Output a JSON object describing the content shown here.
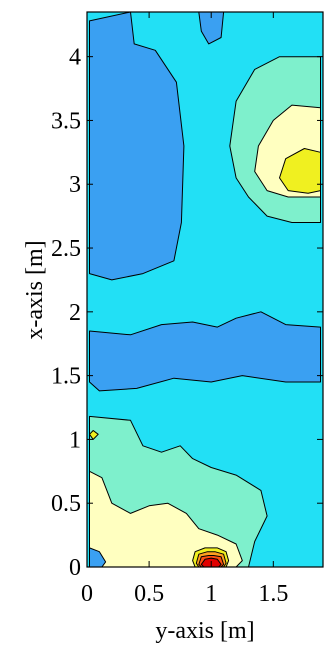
{
  "chart_data": {
    "type": "contour",
    "title": "",
    "xlabel": "y-axis [m]",
    "ylabel": "x-axis [m]",
    "xlim": [
      0,
      1.9
    ],
    "ylim": [
      0,
      4.35
    ],
    "x_ticks": [
      0,
      0.5,
      1,
      1.5
    ],
    "x_tick_labels": [
      "0",
      "0.5",
      "1",
      "1.5"
    ],
    "y_ticks": [
      0,
      0.5,
      1,
      1.5,
      2,
      2.5,
      3,
      3.5,
      4
    ],
    "y_tick_labels": [
      "0",
      "0.5",
      "1",
      "1.5",
      "2",
      "2.5",
      "3",
      "3.5",
      "4"
    ],
    "grid": false,
    "legend": "none",
    "colormap": "jet",
    "levels": [
      {
        "level": 1,
        "color": "#0a7de8"
      },
      {
        "level": 2,
        "color": "#3aa0f2"
      },
      {
        "level": 3,
        "color": "#22e0f5"
      },
      {
        "level": 4,
        "color": "#7ef0cc"
      },
      {
        "level": 5,
        "color": "#ffffc0"
      },
      {
        "level": 6,
        "color": "#f0f020"
      },
      {
        "level": 7,
        "color": "#ffa020"
      },
      {
        "level": 8,
        "color": "#ff5010"
      },
      {
        "level": 9,
        "color": "#e00000"
      }
    ],
    "regions": [
      {
        "name": "background",
        "level": 3,
        "points": [
          [
            0,
            0
          ],
          [
            1.9,
            0
          ],
          [
            1.9,
            4.35
          ],
          [
            0,
            4.35
          ]
        ]
      },
      {
        "name": "upper-left-low",
        "level": 2,
        "points": [
          [
            0.02,
            4.28
          ],
          [
            0.35,
            4.35
          ],
          [
            0.38,
            4.1
          ],
          [
            0.55,
            4.05
          ],
          [
            0.72,
            3.8
          ],
          [
            0.78,
            3.3
          ],
          [
            0.76,
            2.7
          ],
          [
            0.7,
            2.4
          ],
          [
            0.45,
            2.3
          ],
          [
            0.2,
            2.25
          ],
          [
            0.02,
            2.3
          ]
        ]
      },
      {
        "name": "top-center-low",
        "level": 2,
        "points": [
          [
            0.9,
            4.35
          ],
          [
            1.1,
            4.35
          ],
          [
            1.08,
            4.15
          ],
          [
            0.98,
            4.1
          ],
          [
            0.92,
            4.2
          ]
        ]
      },
      {
        "name": "middle-band-low",
        "level": 2,
        "points": [
          [
            0.02,
            1.85
          ],
          [
            0.35,
            1.82
          ],
          [
            0.6,
            1.9
          ],
          [
            0.85,
            1.92
          ],
          [
            1.05,
            1.88
          ],
          [
            1.2,
            1.95
          ],
          [
            1.4,
            2.0
          ],
          [
            1.6,
            1.9
          ],
          [
            1.88,
            1.88
          ],
          [
            1.88,
            1.45
          ],
          [
            1.6,
            1.45
          ],
          [
            1.25,
            1.5
          ],
          [
            1.0,
            1.45
          ],
          [
            0.7,
            1.48
          ],
          [
            0.4,
            1.4
          ],
          [
            0.1,
            1.38
          ],
          [
            0.02,
            1.45
          ]
        ]
      },
      {
        "name": "upper-right-mid",
        "level": 4,
        "points": [
          [
            1.88,
            4.0
          ],
          [
            1.55,
            4.0
          ],
          [
            1.35,
            3.9
          ],
          [
            1.2,
            3.65
          ],
          [
            1.15,
            3.3
          ],
          [
            1.2,
            3.05
          ],
          [
            1.3,
            2.9
          ],
          [
            1.45,
            2.75
          ],
          [
            1.65,
            2.7
          ],
          [
            1.88,
            2.7
          ]
        ]
      },
      {
        "name": "upper-right-high",
        "level": 5,
        "points": [
          [
            1.88,
            3.6
          ],
          [
            1.65,
            3.62
          ],
          [
            1.5,
            3.5
          ],
          [
            1.38,
            3.3
          ],
          [
            1.35,
            3.1
          ],
          [
            1.45,
            2.95
          ],
          [
            1.62,
            2.9
          ],
          [
            1.88,
            2.9
          ]
        ]
      },
      {
        "name": "upper-right-peak",
        "level": 6,
        "points": [
          [
            1.88,
            3.25
          ],
          [
            1.75,
            3.28
          ],
          [
            1.6,
            3.2
          ],
          [
            1.55,
            3.05
          ],
          [
            1.62,
            2.95
          ],
          [
            1.78,
            2.93
          ],
          [
            1.88,
            2.95
          ]
        ]
      },
      {
        "name": "bottom-left-mid",
        "level": 4,
        "points": [
          [
            0.02,
            1.18
          ],
          [
            0.35,
            1.15
          ],
          [
            0.45,
            0.95
          ],
          [
            0.6,
            0.9
          ],
          [
            0.75,
            0.95
          ],
          [
            0.85,
            0.85
          ],
          [
            1.0,
            0.78
          ],
          [
            1.2,
            0.72
          ],
          [
            1.4,
            0.6
          ],
          [
            1.45,
            0.4
          ],
          [
            1.35,
            0.2
          ],
          [
            1.3,
            0.0
          ],
          [
            0.02,
            0.0
          ]
        ]
      },
      {
        "name": "bottom-left-high",
        "level": 5,
        "points": [
          [
            0.02,
            0.75
          ],
          [
            0.12,
            0.7
          ],
          [
            0.2,
            0.5
          ],
          [
            0.35,
            0.42
          ],
          [
            0.5,
            0.48
          ],
          [
            0.65,
            0.5
          ],
          [
            0.8,
            0.42
          ],
          [
            0.9,
            0.3
          ],
          [
            1.05,
            0.25
          ],
          [
            1.2,
            0.18
          ],
          [
            1.25,
            0.05
          ],
          [
            1.2,
            0.0
          ],
          [
            0.02,
            0.0
          ]
        ]
      },
      {
        "name": "bottom-left-corner-low",
        "level": 2,
        "points": [
          [
            0.02,
            0.15
          ],
          [
            0.1,
            0.12
          ],
          [
            0.15,
            0.04
          ],
          [
            0.12,
            0.0
          ],
          [
            0.02,
            0.0
          ]
        ]
      },
      {
        "name": "bottom-center-ring1",
        "level": 6,
        "points": [
          [
            0.85,
            0.05
          ],
          [
            0.87,
            0.12
          ],
          [
            0.95,
            0.15
          ],
          [
            1.05,
            0.15
          ],
          [
            1.12,
            0.12
          ],
          [
            1.14,
            0.05
          ],
          [
            1.12,
            0.0
          ],
          [
            0.87,
            0.0
          ]
        ]
      },
      {
        "name": "bottom-center-ring2",
        "level": 7,
        "points": [
          [
            0.88,
            0.03
          ],
          [
            0.9,
            0.1
          ],
          [
            0.97,
            0.12
          ],
          [
            1.03,
            0.12
          ],
          [
            1.1,
            0.1
          ],
          [
            1.12,
            0.03
          ],
          [
            1.1,
            0.0
          ],
          [
            0.9,
            0.0
          ]
        ]
      },
      {
        "name": "bottom-center-ring3",
        "level": 8,
        "points": [
          [
            0.9,
            0.02
          ],
          [
            0.92,
            0.08
          ],
          [
            0.98,
            0.09
          ],
          [
            1.02,
            0.09
          ],
          [
            1.08,
            0.08
          ],
          [
            1.1,
            0.02
          ],
          [
            1.08,
            0.0
          ],
          [
            0.92,
            0.0
          ]
        ]
      },
      {
        "name": "bottom-center-peak",
        "level": 9,
        "points": [
          [
            0.92,
            0.02
          ],
          [
            0.95,
            0.06
          ],
          [
            1.0,
            0.07
          ],
          [
            1.05,
            0.06
          ],
          [
            1.08,
            0.02
          ],
          [
            1.06,
            0.0
          ],
          [
            0.94,
            0.0
          ]
        ]
      },
      {
        "name": "left-edge-spot",
        "level": 6,
        "points": [
          [
            0.02,
            1.04
          ],
          [
            0.05,
            1.07
          ],
          [
            0.09,
            1.04
          ],
          [
            0.05,
            1.0
          ]
        ]
      }
    ]
  }
}
